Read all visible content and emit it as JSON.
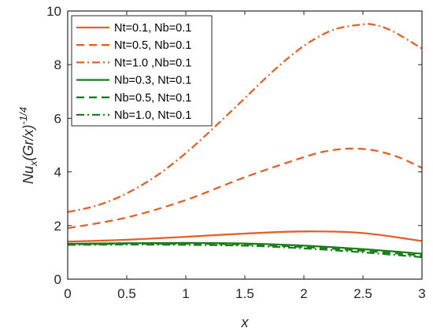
{
  "chart_data": {
    "type": "line",
    "xlabel": "x",
    "ylabel_parts": {
      "base": "Nu",
      "sub": "x",
      "mid": "(Gr/x)",
      "sup": "-1/4"
    },
    "xlim": [
      0,
      3
    ],
    "ylim": [
      0,
      10
    ],
    "xticks": [
      "0",
      "0.5",
      "1",
      "1.5",
      "2",
      "2.5",
      "3"
    ],
    "yticks": [
      "0",
      "2",
      "4",
      "6",
      "8",
      "10"
    ],
    "grid": false,
    "legend_position": "top-left",
    "colors": {
      "orange": "#e0622a",
      "green": "#1a7f1a",
      "axis": "#262626"
    },
    "series": [
      {
        "name": "Nt=0.1, Nb=0.1",
        "color": "#e0622a",
        "dash": "solid",
        "x": [
          0,
          0.5,
          1,
          1.5,
          2,
          2.5,
          3
        ],
        "y": [
          1.4,
          1.47,
          1.58,
          1.7,
          1.78,
          1.72,
          1.42
        ]
      },
      {
        "name": "Nt=0.5, Nb=0.1",
        "color": "#e0622a",
        "dash": "dash",
        "x": [
          0,
          0.5,
          1,
          1.5,
          2,
          2.2,
          2.4,
          2.6,
          2.8,
          3
        ],
        "y": [
          1.9,
          2.3,
          2.95,
          3.8,
          4.55,
          4.78,
          4.87,
          4.8,
          4.55,
          4.15
        ]
      },
      {
        "name": "Nt=1.0 ,Nb=0.1",
        "color": "#e0622a",
        "dash": "dashdot",
        "x": [
          0,
          0.25,
          0.5,
          0.75,
          1,
          1.25,
          1.5,
          1.75,
          2,
          2.25,
          2.5,
          2.6,
          2.75,
          3
        ],
        "y": [
          2.5,
          2.75,
          3.2,
          3.85,
          4.7,
          5.7,
          6.75,
          7.8,
          8.7,
          9.3,
          9.5,
          9.48,
          9.25,
          8.6
        ]
      },
      {
        "name": "Nb=0.3, Nt=0.1",
        "color": "#1a7f1a",
        "dash": "solid",
        "x": [
          0,
          0.5,
          1,
          1.5,
          2,
          2.5,
          3
        ],
        "y": [
          1.32,
          1.34,
          1.35,
          1.33,
          1.25,
          1.12,
          0.95
        ]
      },
      {
        "name": "Nb=0.5, Nt=0.1",
        "color": "#1a7f1a",
        "dash": "dash",
        "x": [
          0,
          0.5,
          1,
          1.5,
          2,
          2.5,
          3
        ],
        "y": [
          1.3,
          1.32,
          1.32,
          1.29,
          1.2,
          1.06,
          0.88
        ]
      },
      {
        "name": "Nb=1.0, Nt=0.1",
        "color": "#1a7f1a",
        "dash": "dashdot",
        "x": [
          0,
          0.5,
          1,
          1.5,
          2,
          2.5,
          3
        ],
        "y": [
          1.28,
          1.29,
          1.28,
          1.25,
          1.15,
          1.0,
          0.82
        ]
      }
    ]
  }
}
